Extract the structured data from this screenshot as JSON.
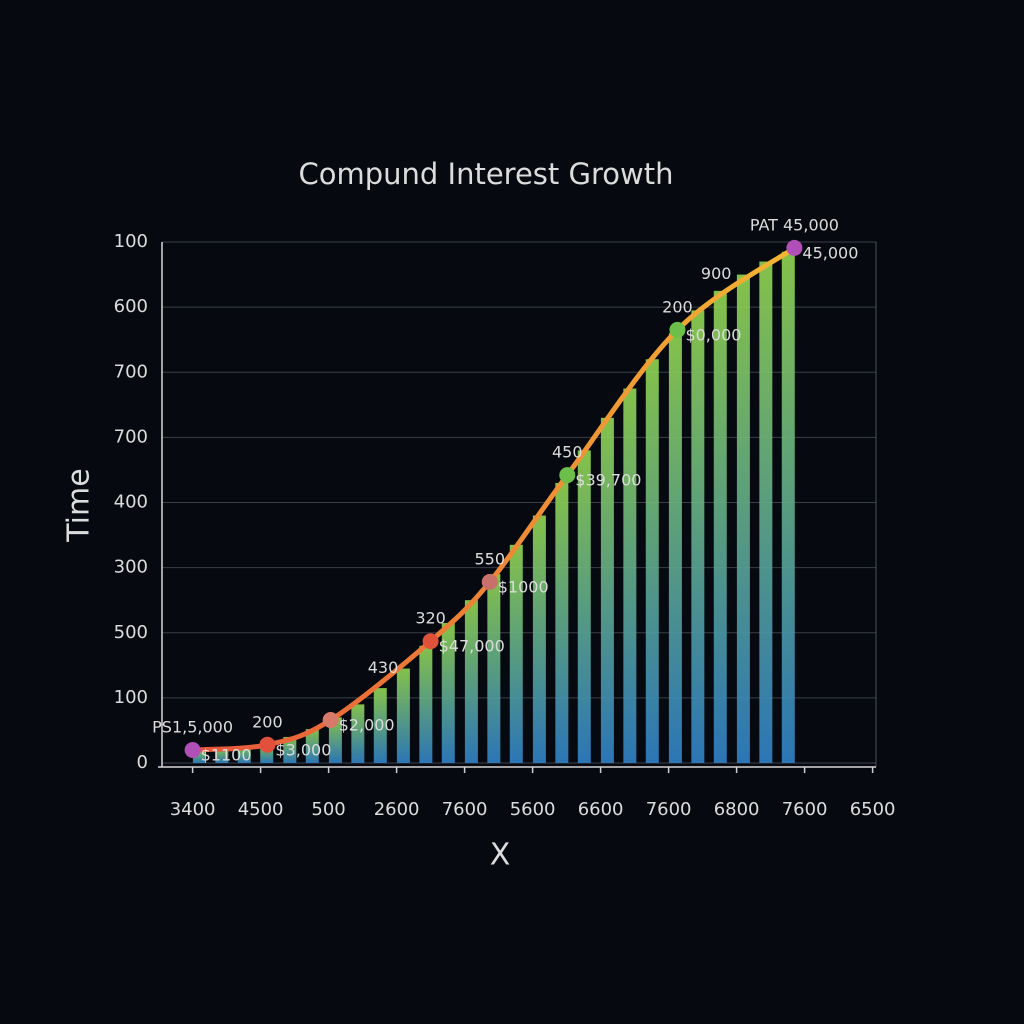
{
  "chart_data": {
    "type": "combo",
    "title": "Compund Interest Growth",
    "y_label": "Time",
    "x_label": "X",
    "xlim": [
      -0.45,
      10.05
    ],
    "xticks": [
      {
        "value": 0,
        "label": "3400"
      },
      {
        "value": 1,
        "label": "4500"
      },
      {
        "value": 2,
        "label": "500"
      },
      {
        "value": 3,
        "label": "2600"
      },
      {
        "value": 4,
        "label": "7600"
      },
      {
        "value": 5,
        "label": "5600"
      },
      {
        "value": 6,
        "label": "6600"
      },
      {
        "value": 7,
        "label": "7600"
      },
      {
        "value": 8,
        "label": "6800"
      },
      {
        "value": 9,
        "label": "7600"
      },
      {
        "value": 10,
        "label": "6500"
      }
    ],
    "ylim": [
      0,
      8
    ],
    "yticks": [
      {
        "value": 0,
        "label": "0"
      },
      {
        "value": 1,
        "label": "100"
      },
      {
        "value": 2,
        "label": "500"
      },
      {
        "value": 3,
        "label": "300"
      },
      {
        "value": 4,
        "label": "400"
      },
      {
        "value": 5,
        "label": "700"
      },
      {
        "value": 6,
        "label": "700"
      },
      {
        "value": 7,
        "label": "600"
      },
      {
        "value": 8,
        "label": "100"
      }
    ],
    "grid": true,
    "series": [
      {
        "type": "bar",
        "gradient": [
          "#2f7fc4",
          "#8fd14f"
        ],
        "x": [
          0.1,
          0.43,
          0.76,
          1.09,
          1.43,
          1.76,
          2.1,
          2.43,
          2.76,
          3.1,
          3.43,
          3.76,
          4.1,
          4.43,
          4.76,
          5.1,
          5.43,
          5.76,
          6.1,
          6.43,
          6.76,
          7.1,
          7.43,
          7.76,
          8.1,
          8.43,
          8.76
        ],
        "values": [
          0.2,
          0.22,
          0.25,
          0.3,
          0.4,
          0.52,
          0.7,
          0.9,
          1.15,
          1.45,
          1.8,
          2.15,
          2.5,
          2.9,
          3.35,
          3.8,
          4.3,
          4.8,
          5.3,
          5.75,
          6.2,
          6.6,
          6.95,
          7.25,
          7.5,
          7.7,
          7.85
        ]
      },
      {
        "type": "line",
        "gradient": [
          "#e8553a",
          "#f2b632"
        ],
        "x": [
          0,
          1.1,
          2.03,
          3.5,
          4.37,
          5.51,
          7.13,
          8.85
        ],
        "values": [
          0.2,
          0.28,
          0.66,
          1.87,
          2.78,
          4.42,
          6.65,
          7.91
        ],
        "marker_colors": [
          "#b04fb8",
          "#e0503a",
          "#d77a6a",
          "#e0503a",
          "#c8706a",
          "#6cc04a",
          "#6cc04a",
          "#b04fb8"
        ],
        "top_labels": [
          "PS1,5,000",
          "200",
          null,
          "320",
          "550",
          "450",
          "200",
          "PAT 45,000"
        ],
        "side_labels": [
          "$1100",
          "$3,000",
          "$2,000",
          "$47,000",
          "$1000",
          "$39,700",
          "$0,000",
          "45,000"
        ]
      }
    ],
    "annotations": [
      {
        "text": "430",
        "x": 2.8,
        "y": 1.45
      },
      {
        "text": "900",
        "x": 7.7,
        "y": 7.5
      }
    ]
  }
}
